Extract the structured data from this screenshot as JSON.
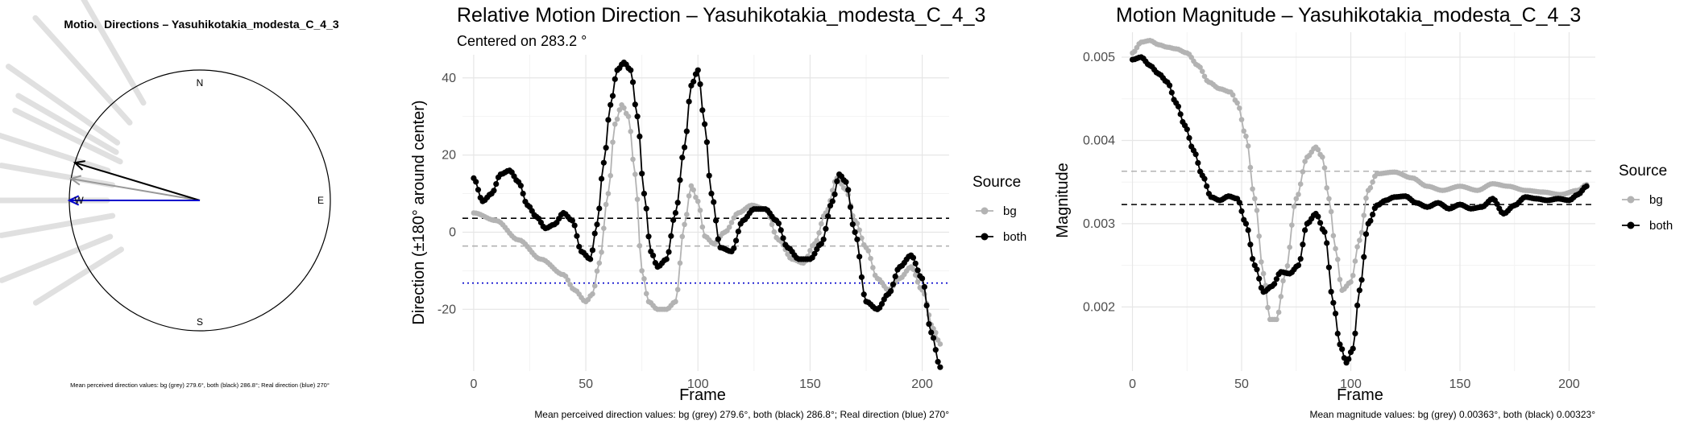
{
  "chart_data": [
    {
      "type": "polar",
      "title": "Motion Directions – Yasuhikotakia_modesta_C_4_3",
      "compass": {
        "n": "N",
        "e": "E",
        "s": "S",
        "w": "W"
      },
      "arrows": [
        {
          "name": "bg",
          "direction_deg": 279.6,
          "color": "#999999"
        },
        {
          "name": "both",
          "direction_deg": 286.8,
          "color": "#000000"
        },
        {
          "name": "real",
          "direction_deg": 270,
          "color": "#0000cc"
        }
      ],
      "caption": "Mean perceived direction values: bg (grey) 279.6°, both (black) 286.8°; Real direction (blue) 270°"
    },
    {
      "type": "line",
      "title": "Relative Motion Direction – Yasuhikotakia_modesta_C_4_3",
      "subtitle": "Centered on  283.2 °",
      "xlabel": "Frame",
      "ylabel": "Direction (±180° around center)",
      "xlim": [
        -5,
        212
      ],
      "ylim": [
        -36,
        46
      ],
      "xticks": [
        0,
        50,
        100,
        150,
        200
      ],
      "yticks": [
        -20,
        0,
        20,
        40
      ],
      "legend_title": "Source",
      "legend_position": "right",
      "series": [
        {
          "name": "bg",
          "color": "#b3b3b3",
          "x": [
            0,
            10,
            20,
            30,
            40,
            45,
            50,
            53,
            56,
            60,
            63,
            66,
            69,
            72,
            75,
            78,
            82,
            86,
            90,
            94,
            97,
            100,
            103,
            107,
            112,
            118,
            124,
            130,
            136,
            142,
            147,
            152,
            157,
            162,
            166,
            170,
            175,
            180,
            185,
            190,
            195,
            200,
            205,
            208
          ],
          "y": [
            5,
            3,
            -2,
            -7,
            -11,
            -15,
            -18,
            -16,
            -8,
            10,
            28,
            33,
            30,
            15,
            -10,
            -18,
            -20,
            -20,
            -18,
            2,
            12,
            8,
            -1,
            -3,
            0,
            5,
            7,
            6,
            -2,
            -7,
            -8,
            -3,
            5,
            14,
            11,
            3,
            -4,
            -12,
            -15,
            -12,
            -9,
            -15,
            -25,
            -29
          ]
        },
        {
          "name": "both",
          "color": "#000000",
          "x": [
            0,
            4,
            8,
            12,
            16,
            20,
            24,
            28,
            32,
            36,
            40,
            44,
            48,
            52,
            55,
            58,
            61,
            64,
            67,
            70,
            73,
            76,
            79,
            82,
            86,
            90,
            94,
            97,
            100,
            103,
            106,
            110,
            115,
            120,
            125,
            130,
            135,
            140,
            145,
            150,
            155,
            160,
            163,
            166,
            170,
            175,
            180,
            185,
            190,
            195,
            200,
            204,
            208
          ],
          "y": [
            14,
            8,
            10,
            15,
            16,
            13,
            7,
            4,
            1,
            2,
            5,
            3,
            -5,
            -7,
            2,
            18,
            33,
            42,
            44,
            42,
            30,
            10,
            -5,
            -9,
            -7,
            5,
            22,
            38,
            42,
            28,
            10,
            -4,
            -5,
            3,
            6,
            6,
            3,
            -4,
            -7,
            -7,
            -3,
            8,
            15,
            13,
            0,
            -18,
            -20,
            -16,
            -9,
            -6,
            -12,
            -26,
            -35
          ]
        }
      ],
      "reference_lines": [
        {
          "label": "both mean",
          "y": 3.6,
          "color": "#000000",
          "style": "dashed"
        },
        {
          "label": "bg mean",
          "y": -3.6,
          "color": "#b3b3b3",
          "style": "dashed"
        },
        {
          "label": "real",
          "y": -13.2,
          "color": "#0000cc",
          "style": "dotted"
        }
      ],
      "caption": "Mean perceived direction values: bg (grey) 279.6°, both (black) 286.8°; Real direction (blue) 270°"
    },
    {
      "type": "line",
      "title": "Motion Magnitude – Yasuhikotakia_modesta_C_4_3",
      "xlabel": "Frame",
      "ylabel": "Magnitude",
      "xlim": [
        -5,
        212
      ],
      "ylim": [
        0.00123,
        0.0053
      ],
      "xticks": [
        0,
        50,
        100,
        150,
        200
      ],
      "yticks": [
        0.002,
        0.003,
        0.004,
        0.005
      ],
      "legend_title": "Source",
      "legend_position": "right",
      "series": [
        {
          "name": "bg",
          "color": "#b3b3b3",
          "x": [
            0,
            4,
            8,
            12,
            16,
            20,
            25,
            30,
            35,
            40,
            45,
            48,
            52,
            56,
            60,
            63,
            66,
            70,
            75,
            80,
            84,
            87,
            90,
            93,
            96,
            100,
            104,
            108,
            112,
            120,
            128,
            135,
            142,
            150,
            158,
            165,
            172,
            180,
            188,
            196,
            204,
            208
          ],
          "y": [
            0.00505,
            0.00518,
            0.0052,
            0.00515,
            0.00512,
            0.0051,
            0.00505,
            0.0049,
            0.0047,
            0.00462,
            0.00458,
            0.00445,
            0.00405,
            0.0033,
            0.0024,
            0.00185,
            0.00185,
            0.0024,
            0.0033,
            0.0038,
            0.00392,
            0.0038,
            0.0033,
            0.0027,
            0.0022,
            0.0023,
            0.0028,
            0.0034,
            0.0036,
            0.00362,
            0.00355,
            0.00345,
            0.0034,
            0.00345,
            0.0034,
            0.00348,
            0.00345,
            0.0034,
            0.00338,
            0.00335,
            0.0034,
            0.00347
          ]
        },
        {
          "name": "both",
          "color": "#000000",
          "x": [
            0,
            4,
            8,
            12,
            16,
            20,
            24,
            28,
            32,
            36,
            40,
            44,
            48,
            52,
            56,
            60,
            64,
            68,
            72,
            76,
            80,
            84,
            88,
            92,
            95,
            98,
            101,
            104,
            108,
            112,
            116,
            120,
            125,
            130,
            135,
            140,
            145,
            150,
            155,
            160,
            165,
            170,
            175,
            180,
            185,
            190,
            195,
            200,
            204,
            208
          ],
          "y": [
            0.00497,
            0.005,
            0.0049,
            0.0048,
            0.0047,
            0.00445,
            0.00418,
            0.00388,
            0.00358,
            0.00332,
            0.00328,
            0.00333,
            0.0033,
            0.003,
            0.0025,
            0.00218,
            0.00225,
            0.00242,
            0.0024,
            0.0025,
            0.003,
            0.00312,
            0.0029,
            0.00205,
            0.00155,
            0.00133,
            0.0015,
            0.0022,
            0.003,
            0.00322,
            0.00328,
            0.00332,
            0.00333,
            0.00325,
            0.0032,
            0.00325,
            0.00318,
            0.00323,
            0.00318,
            0.0032,
            0.0033,
            0.00312,
            0.00322,
            0.00332,
            0.0033,
            0.00328,
            0.0033,
            0.00328,
            0.00335,
            0.00345
          ]
        }
      ],
      "reference_lines": [
        {
          "label": "bg mean",
          "y": 0.00363,
          "color": "#b3b3b3",
          "style": "dashed"
        },
        {
          "label": "both mean",
          "y": 0.00323,
          "color": "#000000",
          "style": "dashed"
        }
      ],
      "caption": "Mean magnitude values: bg (grey) 0.00363°, both (black) 0.00323°"
    }
  ]
}
